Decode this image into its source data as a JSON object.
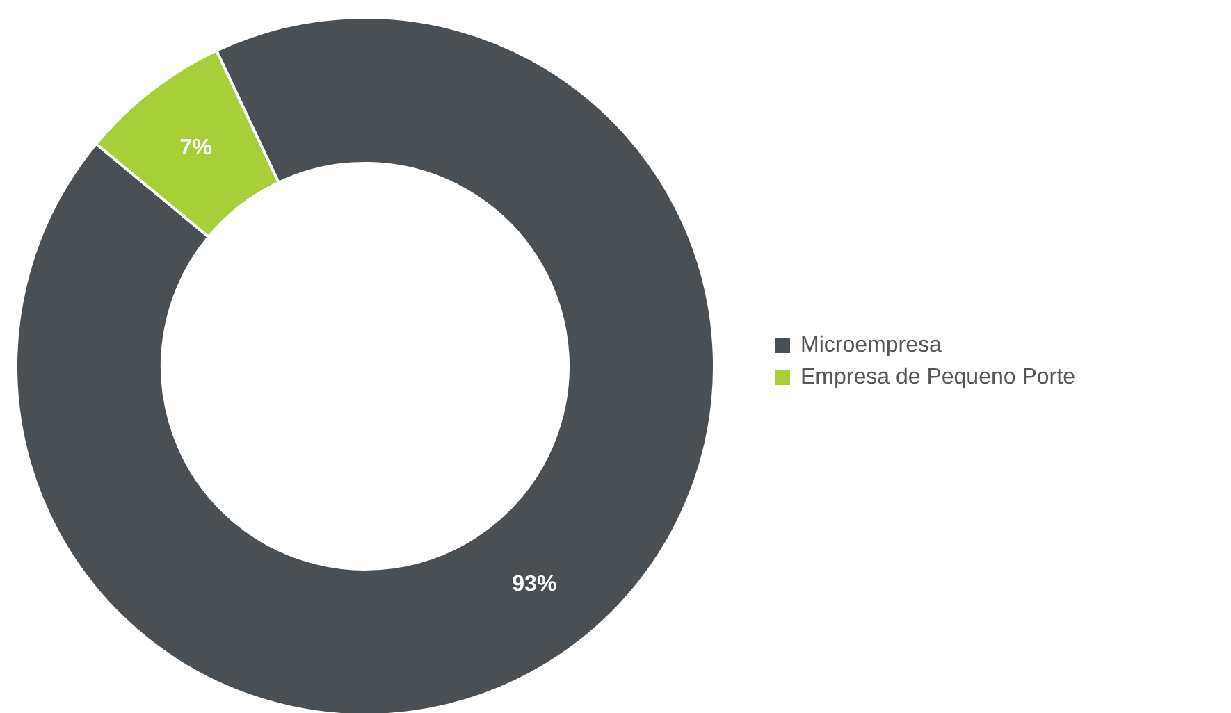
{
  "chart_data": {
    "type": "donut",
    "categories": [
      "Microempresa",
      "Empresa de Pequeno Porte"
    ],
    "values": [
      93,
      7
    ],
    "colors": [
      "#4a4f54",
      "#a8cf38"
    ],
    "value_labels": [
      "93%",
      "7%"
    ],
    "legend": "right"
  }
}
